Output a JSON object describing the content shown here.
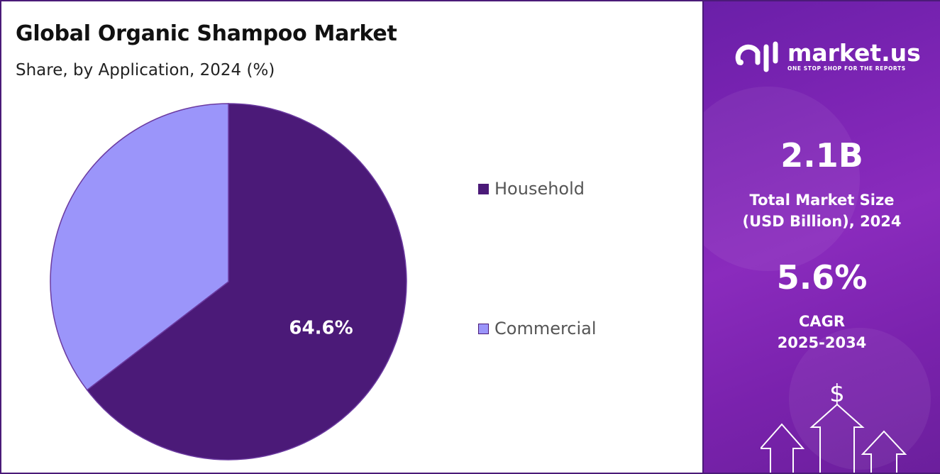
{
  "title": "Global Organic Shampoo Market",
  "subtitle": "Share, by Application, 2024 (%)",
  "chart_data": {
    "type": "pie",
    "title": "Global Organic Shampoo Market",
    "subtitle": "Share, by Application, 2024 (%)",
    "categories": [
      "Household",
      "Commercial"
    ],
    "values": [
      64.6,
      35.4
    ],
    "data_labels": [
      "64.6%",
      ""
    ],
    "colors": [
      "#4b1a78",
      "#9b95fa"
    ],
    "legend_position": "right"
  },
  "legend": [
    {
      "label": "Household",
      "color": "#4b1a78"
    },
    {
      "label": "Commercial",
      "color": "#9b95fa"
    }
  ],
  "sidebar": {
    "logo_name": "market.us",
    "logo_tagline": "ONE STOP SHOP FOR THE REPORTS",
    "market_size_value": "2.1B",
    "market_size_label_line1": "Total Market Size",
    "market_size_label_line2": "(USD Billion), 2024",
    "cagr_value": "5.6%",
    "cagr_label_line1": "CAGR",
    "cagr_label_line2": "2025-2034",
    "dollar_symbol": "$"
  }
}
